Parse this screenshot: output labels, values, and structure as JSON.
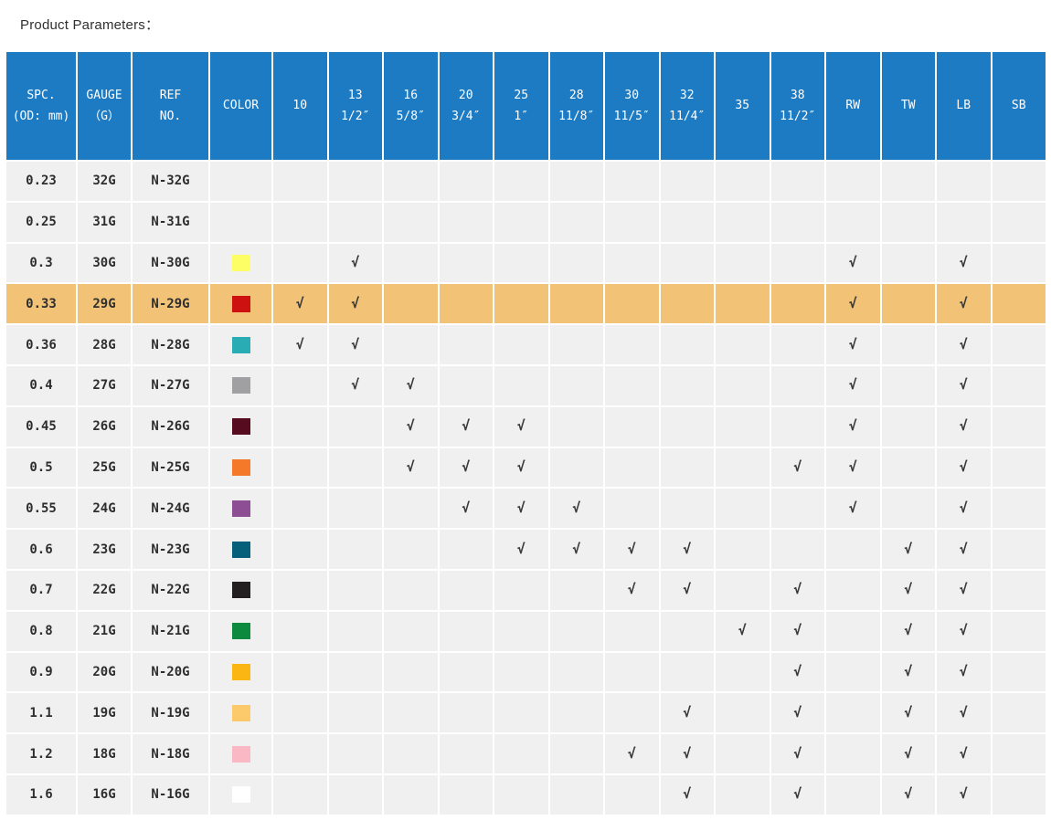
{
  "title": "Product Parameters：",
  "table": {
    "check_mark": "√",
    "colors": {
      "header_bg": "#1d7bc4",
      "header_text": "#ffffff",
      "row_bg": "#f0f0f0",
      "highlight_bg": "#f2c377",
      "check_color": "#3a3a3a"
    },
    "header": [
      {
        "line1": "SPC.",
        "line2": "(OD: mm)"
      },
      {
        "line1": "GAUGE",
        "line2": "（G）"
      },
      {
        "line1": "REF",
        "line2": "NO."
      },
      {
        "line1": "COLOR",
        "line2": ""
      },
      {
        "line1": "10",
        "line2": ""
      },
      {
        "line1": "13",
        "line2": "1/2″"
      },
      {
        "line1": "16",
        "line2": "5/8″"
      },
      {
        "line1": "20",
        "line2": "3/4″"
      },
      {
        "line1": "25",
        "line2": "1″"
      },
      {
        "line1": "28",
        "line2": "11/8″"
      },
      {
        "line1": "30",
        "line2": "11/5″"
      },
      {
        "line1": "32",
        "line2": "11/4″"
      },
      {
        "line1": "35",
        "line2": ""
      },
      {
        "line1": "38",
        "line2": "11/2″"
      },
      {
        "line1": "RW",
        "line2": ""
      },
      {
        "line1": "TW",
        "line2": ""
      },
      {
        "line1": "LB",
        "line2": ""
      },
      {
        "line1": "SB",
        "line2": ""
      }
    ],
    "columns": [
      "10",
      "13",
      "16",
      "20",
      "25",
      "28",
      "30",
      "32",
      "35",
      "38",
      "RW",
      "TW",
      "LB",
      "SB"
    ],
    "rows": [
      {
        "spc": "0.23",
        "gauge": "32G",
        "ref": "N-32G",
        "color": null,
        "highlight": false,
        "checks": []
      },
      {
        "spc": "0.25",
        "gauge": "31G",
        "ref": "N-31G",
        "color": null,
        "highlight": false,
        "checks": []
      },
      {
        "spc": "0.3",
        "gauge": "30G",
        "ref": "N-30G",
        "color": "#fdfd65",
        "highlight": false,
        "checks": [
          "13",
          "RW",
          "LB"
        ]
      },
      {
        "spc": "0.33",
        "gauge": "29G",
        "ref": "N-29G",
        "color": "#cd1010",
        "highlight": true,
        "checks": [
          "10",
          "13",
          "RW",
          "LB"
        ]
      },
      {
        "spc": "0.36",
        "gauge": "28G",
        "ref": "N-28G",
        "color": "#2aacb4",
        "highlight": false,
        "checks": [
          "10",
          "13",
          "RW",
          "LB"
        ]
      },
      {
        "spc": "0.4",
        "gauge": "27G",
        "ref": "N-27G",
        "color": "#a0a0a2",
        "highlight": false,
        "checks": [
          "13",
          "16",
          "RW",
          "LB"
        ]
      },
      {
        "spc": "0.45",
        "gauge": "26G",
        "ref": "N-26G",
        "color": "#570b1e",
        "highlight": false,
        "checks": [
          "16",
          "20",
          "25",
          "RW",
          "LB"
        ]
      },
      {
        "spc": "0.5",
        "gauge": "25G",
        "ref": "N-25G",
        "color": "#f47929",
        "highlight": false,
        "checks": [
          "16",
          "20",
          "25",
          "38",
          "RW",
          "LB"
        ]
      },
      {
        "spc": "0.55",
        "gauge": "24G",
        "ref": "N-24G",
        "color": "#8e4e93",
        "highlight": false,
        "checks": [
          "20",
          "25",
          "28",
          "RW",
          "LB"
        ]
      },
      {
        "spc": "0.6",
        "gauge": "23G",
        "ref": "N-23G",
        "color": "#06607a",
        "highlight": false,
        "checks": [
          "25",
          "28",
          "30",
          "32",
          "TW",
          "LB"
        ]
      },
      {
        "spc": "0.7",
        "gauge": "22G",
        "ref": "N-22G",
        "color": "#231e20",
        "highlight": false,
        "checks": [
          "30",
          "32",
          "38",
          "TW",
          "LB"
        ]
      },
      {
        "spc": "0.8",
        "gauge": "21G",
        "ref": "N-21G",
        "color": "#0e8a3f",
        "highlight": false,
        "checks": [
          "35",
          "38",
          "TW",
          "LB"
        ]
      },
      {
        "spc": "0.9",
        "gauge": "20G",
        "ref": "N-20G",
        "color": "#fcb614",
        "highlight": false,
        "checks": [
          "38",
          "TW",
          "LB"
        ]
      },
      {
        "spc": "1.1",
        "gauge": "19G",
        "ref": "N-19G",
        "color": "#fcc96b",
        "highlight": false,
        "checks": [
          "32",
          "38",
          "TW",
          "LB"
        ]
      },
      {
        "spc": "1.2",
        "gauge": "18G",
        "ref": "N-18G",
        "color": "#f9b8c4",
        "highlight": false,
        "checks": [
          "30",
          "32",
          "38",
          "TW",
          "LB"
        ]
      },
      {
        "spc": "1.6",
        "gauge": "16G",
        "ref": "N-16G",
        "color": "#ffffff",
        "highlight": false,
        "checks": [
          "32",
          "38",
          "TW",
          "LB"
        ]
      }
    ]
  }
}
